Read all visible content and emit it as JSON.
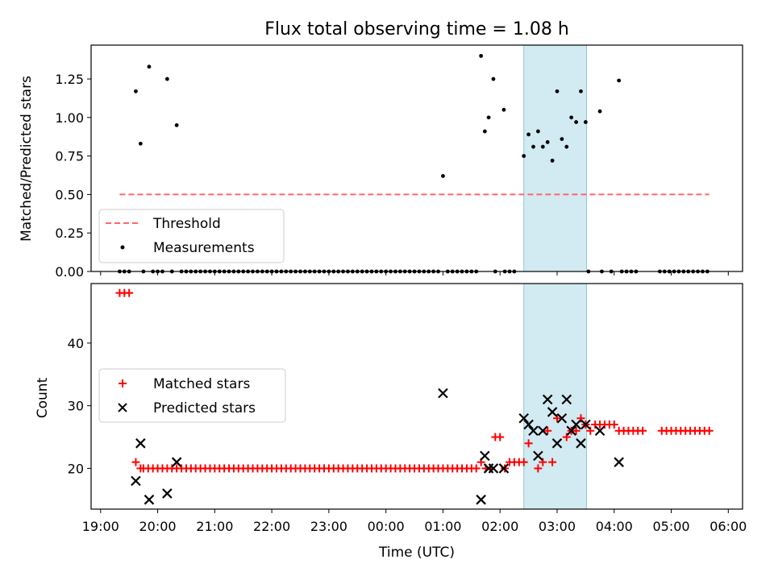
{
  "title": "Flux total observing time = 1.08 h",
  "chart_data": [
    {
      "type": "scatter",
      "ylabel": "Matched/Predicted stars",
      "xlabel": "",
      "ylim": [
        0,
        1.47
      ],
      "yticks": [
        "0.00",
        "0.25",
        "0.50",
        "0.75",
        "1.00",
        "1.25"
      ],
      "threshold": {
        "name": "Threshold",
        "y": 0.5,
        "x_start": "19:20",
        "x_end": "05:40",
        "color": "#ff6666"
      },
      "highlight": {
        "x_start": "02:25",
        "x_end": "03:31",
        "color": "#add8e6"
      },
      "legend": {
        "position": "lower-left",
        "entries": [
          "Threshold",
          "Measurements"
        ]
      },
      "series": [
        {
          "name": "Measurements",
          "color": "#000000",
          "points": [
            [
              "19:37",
              1.17
            ],
            [
              "19:42",
              0.83
            ],
            [
              "19:51",
              1.33
            ],
            [
              "20:10",
              1.25
            ],
            [
              "20:20",
              0.95
            ],
            [
              "01:00",
              0.62
            ],
            [
              "01:40",
              1.4
            ],
            [
              "01:44",
              0.91
            ],
            [
              "01:48",
              1.0
            ],
            [
              "01:53",
              1.25
            ],
            [
              "02:04",
              1.05
            ],
            [
              "02:25",
              0.75
            ],
            [
              "02:30",
              0.89
            ],
            [
              "02:35",
              0.81
            ],
            [
              "02:40",
              0.91
            ],
            [
              "02:45",
              0.81
            ],
            [
              "02:50",
              0.84
            ],
            [
              "02:55",
              0.72
            ],
            [
              "03:00",
              1.17
            ],
            [
              "03:05",
              0.86
            ],
            [
              "03:10",
              0.81
            ],
            [
              "03:15",
              1.0
            ],
            [
              "03:20",
              0.97
            ],
            [
              "03:25",
              1.17
            ],
            [
              "03:30",
              0.97
            ],
            [
              "03:45",
              1.04
            ],
            [
              "04:05",
              1.24
            ]
          ],
          "zero_ranges": [
            [
              "19:20",
              "19:32"
            ],
            [
              "19:45",
              "19:45"
            ],
            [
              "19:55",
              "20:06"
            ],
            [
              "20:15",
              "20:15"
            ],
            [
              "20:25",
              "00:55"
            ],
            [
              "01:05",
              "01:37"
            ],
            [
              "01:55",
              "01:55"
            ],
            [
              "02:05",
              "02:15"
            ],
            [
              "03:33",
              "03:37"
            ],
            [
              "03:47",
              "03:51"
            ],
            [
              "03:57",
              "04:00"
            ],
            [
              "04:08",
              "04:27"
            ],
            [
              "04:48",
              "05:40"
            ]
          ]
        }
      ]
    },
    {
      "type": "scatter",
      "ylabel": "Count",
      "xlabel": "Time (UTC)",
      "ylim": [
        13.5,
        49.5
      ],
      "yticks": [
        "20",
        "30",
        "40"
      ],
      "highlight": {
        "x_start": "02:25",
        "x_end": "03:31",
        "color": "#add8e6"
      },
      "legend": {
        "position": "center-left",
        "entries": [
          "Matched stars",
          "Predicted stars"
        ]
      },
      "xticks": [
        "19:00",
        "20:00",
        "21:00",
        "22:00",
        "23:00",
        "00:00",
        "01:00",
        "02:00",
        "03:00",
        "04:00",
        "05:00",
        "06:00"
      ],
      "series": [
        {
          "name": "Matched stars",
          "color": "#ff0000",
          "marker": "plus",
          "points": [
            [
              "19:20",
              48
            ],
            [
              "19:25",
              48
            ],
            [
              "19:30",
              48
            ],
            [
              "19:37",
              21
            ],
            [
              "19:42",
              20
            ],
            [
              "01:40",
              21
            ],
            [
              "01:45",
              20
            ],
            [
              "01:50",
              20
            ],
            [
              "01:55",
              25
            ],
            [
              "02:00",
              25
            ],
            [
              "02:05",
              20
            ],
            [
              "02:10",
              21
            ],
            [
              "02:30",
              24
            ],
            [
              "02:40",
              20
            ],
            [
              "02:45",
              21
            ],
            [
              "02:50",
              26
            ],
            [
              "02:55",
              21
            ],
            [
              "03:00",
              28
            ],
            [
              "03:10",
              25
            ],
            [
              "03:15",
              26
            ],
            [
              "03:20",
              26
            ],
            [
              "03:25",
              28
            ],
            [
              "03:30",
              27
            ],
            [
              "03:35",
              26
            ]
          ],
          "runs": [
            {
              "from": "19:45",
              "to": "01:35",
              "step_minutes": 5,
              "y": 20
            },
            {
              "from": "02:15",
              "to": "02:25",
              "step_minutes": 5,
              "y": 21
            },
            {
              "from": "03:40",
              "to": "04:00",
              "step_minutes": 5,
              "y": 27
            },
            {
              "from": "04:05",
              "to": "04:30",
              "step_minutes": 5,
              "y": 26
            },
            {
              "from": "04:50",
              "to": "05:40",
              "step_minutes": 5,
              "y": 26
            }
          ]
        },
        {
          "name": "Predicted stars",
          "color": "#000000",
          "marker": "x",
          "points": [
            [
              "19:37",
              18
            ],
            [
              "19:42",
              24
            ],
            [
              "19:51",
              15
            ],
            [
              "20:10",
              16
            ],
            [
              "20:20",
              21
            ],
            [
              "01:00",
              32
            ],
            [
              "01:40",
              15
            ],
            [
              "01:44",
              22
            ],
            [
              "01:48",
              20
            ],
            [
              "01:53",
              20
            ],
            [
              "02:04",
              20
            ],
            [
              "02:25",
              28
            ],
            [
              "02:30",
              27
            ],
            [
              "02:35",
              26
            ],
            [
              "02:40",
              22
            ],
            [
              "02:45",
              26
            ],
            [
              "02:50",
              31
            ],
            [
              "02:55",
              29
            ],
            [
              "03:00",
              24
            ],
            [
              "03:05",
              28
            ],
            [
              "03:10",
              31
            ],
            [
              "03:15",
              26
            ],
            [
              "03:20",
              27
            ],
            [
              "03:25",
              24
            ],
            [
              "03:30",
              27
            ],
            [
              "03:45",
              26
            ],
            [
              "04:05",
              21
            ]
          ]
        }
      ]
    }
  ]
}
